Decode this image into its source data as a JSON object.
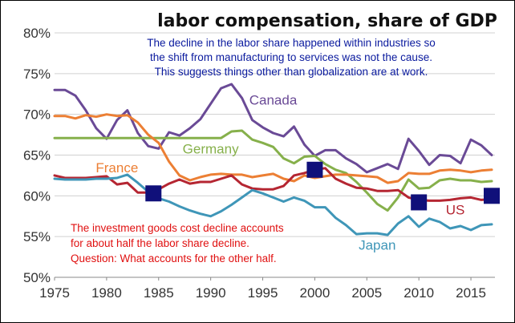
{
  "chart_data": {
    "type": "line",
    "title": "labor compensation, share of GDP",
    "xlabel": "",
    "ylabel": "",
    "xlim": [
      1975,
      2017
    ],
    "ylim": [
      50,
      80
    ],
    "x_ticks": [
      "1975",
      "1980",
      "1985",
      "1990",
      "1995",
      "2000",
      "2005",
      "2010",
      "2015"
    ],
    "y_ticks": [
      "50%",
      "55%",
      "60%",
      "65%",
      "70%",
      "75%",
      "80%"
    ],
    "annotations": {
      "top_note": [
        "The decline in the labor share happened within industries so",
        " the shift from manufacturing to services was not the cause.",
        "This suggests things other than globalization are at work."
      ],
      "bottom_note": [
        "The investment goods cost decline accounts",
        "for about half the labor share decline.",
        "Question: What accounts for the other half."
      ]
    },
    "series": [
      {
        "name": "Canada",
        "color": "#6a4a96",
        "label_at": [
          1996,
          71.2
        ],
        "points": [
          [
            1975,
            73
          ],
          [
            1976,
            73
          ],
          [
            1977,
            72.3
          ],
          [
            1978,
            70.5
          ],
          [
            1979,
            68.3
          ],
          [
            1980,
            67
          ],
          [
            1981,
            69.3
          ],
          [
            1982,
            70.5
          ],
          [
            1983,
            67.7
          ],
          [
            1984,
            66.1
          ],
          [
            1985,
            65.8
          ],
          [
            1986,
            67.8
          ],
          [
            1987,
            67.4
          ],
          [
            1988,
            68.3
          ],
          [
            1989,
            69.4
          ],
          [
            1990,
            71.3
          ],
          [
            1991,
            73.2
          ],
          [
            1992,
            73.7
          ],
          [
            1993,
            72
          ],
          [
            1994,
            69.3
          ],
          [
            1995,
            68.4
          ],
          [
            1996,
            67.7
          ],
          [
            1997,
            67.3
          ],
          [
            1998,
            68.5
          ],
          [
            1999,
            66.3
          ],
          [
            2000,
            64.9
          ],
          [
            2001,
            65.6
          ],
          [
            2002,
            65.6
          ],
          [
            2003,
            64.6
          ],
          [
            2004,
            63.9
          ],
          [
            2005,
            62.9
          ],
          [
            2006,
            63.4
          ],
          [
            2007,
            63.9
          ],
          [
            2008,
            63.3
          ],
          [
            2009,
            67
          ],
          [
            2010,
            65.5
          ],
          [
            2011,
            63.8
          ],
          [
            2012,
            65
          ],
          [
            2013,
            64.9
          ],
          [
            2014,
            64
          ],
          [
            2015,
            66.9
          ],
          [
            2016,
            66.2
          ],
          [
            2017,
            65
          ]
        ]
      },
      {
        "name": "Germany",
        "color": "#86b04b",
        "label_at": [
          1990,
          65.2
        ],
        "points": [
          [
            1975,
            67.1
          ],
          [
            1980,
            67.1
          ],
          [
            1985,
            67.1
          ],
          [
            1990,
            67.1
          ],
          [
            1991,
            67.1
          ],
          [
            1992,
            67.9
          ],
          [
            1993,
            68
          ],
          [
            1994,
            66.9
          ],
          [
            1995,
            66.5
          ],
          [
            1996,
            66
          ],
          [
            1997,
            64.6
          ],
          [
            1998,
            64
          ],
          [
            1999,
            64.8
          ],
          [
            2000,
            64.9
          ],
          [
            2001,
            63.9
          ],
          [
            2002,
            63.2
          ],
          [
            2003,
            62.8
          ],
          [
            2004,
            61.7
          ],
          [
            2005,
            60.4
          ],
          [
            2006,
            59
          ],
          [
            2007,
            58.2
          ],
          [
            2008,
            59.8
          ],
          [
            2009,
            62
          ],
          [
            2010,
            60.9
          ],
          [
            2011,
            61
          ],
          [
            2012,
            61.9
          ],
          [
            2013,
            62.1
          ],
          [
            2014,
            61.9
          ],
          [
            2015,
            61.9
          ],
          [
            2016,
            61.7
          ],
          [
            2017,
            61.8
          ]
        ]
      },
      {
        "name": "France",
        "color": "#ec7f34",
        "label_at": [
          1981,
          62.9
        ],
        "points": [
          [
            1975,
            69.8
          ],
          [
            1976,
            69.8
          ],
          [
            1977,
            69.5
          ],
          [
            1978,
            69.9
          ],
          [
            1979,
            69.7
          ],
          [
            1980,
            70
          ],
          [
            1981,
            69.8
          ],
          [
            1982,
            69.9
          ],
          [
            1983,
            69
          ],
          [
            1984,
            67.5
          ],
          [
            1985,
            66.5
          ],
          [
            1986,
            64.2
          ],
          [
            1987,
            62.5
          ],
          [
            1988,
            61.9
          ],
          [
            1989,
            62.3
          ],
          [
            1990,
            62.6
          ],
          [
            1991,
            62.7
          ],
          [
            1992,
            62.6
          ],
          [
            1993,
            62.6
          ],
          [
            1994,
            62.3
          ],
          [
            1995,
            62.5
          ],
          [
            1996,
            62.7
          ],
          [
            1997,
            62.1
          ],
          [
            1998,
            61.8
          ],
          [
            1999,
            62.5
          ],
          [
            2000,
            62.2
          ],
          [
            2001,
            62.4
          ],
          [
            2002,
            62.6
          ],
          [
            2003,
            62.6
          ],
          [
            2004,
            62.5
          ],
          [
            2005,
            62.4
          ],
          [
            2006,
            62.3
          ],
          [
            2007,
            61.6
          ],
          [
            2008,
            61.8
          ],
          [
            2009,
            62.8
          ],
          [
            2010,
            62.7
          ],
          [
            2011,
            62.7
          ],
          [
            2012,
            63.1
          ],
          [
            2013,
            63.2
          ],
          [
            2014,
            63.1
          ],
          [
            2015,
            62.9
          ],
          [
            2016,
            63.1
          ],
          [
            2017,
            63.2
          ]
        ]
      },
      {
        "name": "US",
        "color": "#b52632",
        "label_at": [
          2013.5,
          57.7
        ],
        "points": [
          [
            1975,
            62.5
          ],
          [
            1976,
            62.2
          ],
          [
            1977,
            62.2
          ],
          [
            1978,
            62.2
          ],
          [
            1979,
            62.3
          ],
          [
            1980,
            62.4
          ],
          [
            1981,
            61.4
          ],
          [
            1982,
            61.6
          ],
          [
            1983,
            60.4
          ],
          [
            1984,
            60.4
          ],
          [
            1985,
            60.8
          ],
          [
            1986,
            61.5
          ],
          [
            1987,
            62
          ],
          [
            1988,
            61.5
          ],
          [
            1989,
            61.7
          ],
          [
            1990,
            61.7
          ],
          [
            1991,
            62.1
          ],
          [
            1992,
            62.5
          ],
          [
            1993,
            61.4
          ],
          [
            1994,
            60.9
          ],
          [
            1995,
            60.8
          ],
          [
            1996,
            60.8
          ],
          [
            1997,
            61.2
          ],
          [
            1998,
            62.5
          ],
          [
            1999,
            62.8
          ],
          [
            2000,
            63.2
          ],
          [
            2001,
            63.4
          ],
          [
            2002,
            62.1
          ],
          [
            2003,
            61.5
          ],
          [
            2004,
            61
          ],
          [
            2005,
            60.9
          ],
          [
            2006,
            60.6
          ],
          [
            2007,
            60.6
          ],
          [
            2008,
            60.7
          ],
          [
            2009,
            59.8
          ],
          [
            2010,
            59.5
          ],
          [
            2011,
            59.4
          ],
          [
            2012,
            59.4
          ],
          [
            2013,
            59.5
          ],
          [
            2014,
            59.7
          ],
          [
            2015,
            59.8
          ],
          [
            2016,
            59.5
          ],
          [
            2017,
            59.6
          ]
        ]
      },
      {
        "name": "Japan",
        "color": "#3f96b8",
        "label_at": [
          2006,
          53.4
        ],
        "points": [
          [
            1975,
            62.1
          ],
          [
            1976,
            62
          ],
          [
            1977,
            62
          ],
          [
            1978,
            62
          ],
          [
            1979,
            62.1
          ],
          [
            1980,
            62.1
          ],
          [
            1981,
            62.2
          ],
          [
            1982,
            62.6
          ],
          [
            1983,
            61.6
          ],
          [
            1984,
            60.5
          ],
          [
            1985,
            59.7
          ],
          [
            1986,
            59.3
          ],
          [
            1987,
            58.7
          ],
          [
            1988,
            58.2
          ],
          [
            1989,
            57.8
          ],
          [
            1990,
            57.5
          ],
          [
            1991,
            58.1
          ],
          [
            1992,
            58.9
          ],
          [
            1993,
            59.8
          ],
          [
            1994,
            60.7
          ],
          [
            1995,
            60.3
          ],
          [
            1996,
            59.8
          ],
          [
            1997,
            59.3
          ],
          [
            1998,
            59.8
          ],
          [
            1999,
            59.4
          ],
          [
            2000,
            58.6
          ],
          [
            2001,
            58.6
          ],
          [
            2002,
            57.3
          ],
          [
            2003,
            56.4
          ],
          [
            2004,
            55.3
          ],
          [
            2005,
            55.4
          ],
          [
            2006,
            55.4
          ],
          [
            2007,
            55.2
          ],
          [
            2008,
            56.6
          ],
          [
            2009,
            57.5
          ],
          [
            2010,
            56.2
          ],
          [
            2011,
            57.2
          ],
          [
            2012,
            56.8
          ],
          [
            2013,
            56
          ],
          [
            2014,
            56.3
          ],
          [
            2015,
            55.8
          ],
          [
            2016,
            56.4
          ],
          [
            2017,
            56.5
          ]
        ]
      }
    ],
    "markers": {
      "shape": "square",
      "color": "#10107a",
      "points": [
        [
          1984.5,
          60.3
        ],
        [
          2000,
          63.2
        ],
        [
          2010,
          59.2
        ],
        [
          2017,
          60
        ]
      ]
    }
  }
}
